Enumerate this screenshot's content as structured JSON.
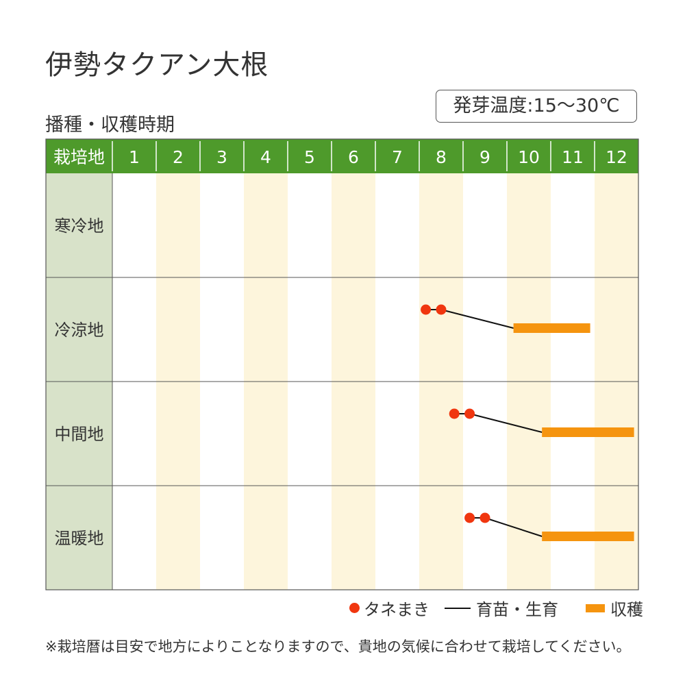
{
  "title": "伊勢タクアン大根",
  "subtitle": "播種・収穫時期",
  "temperature": "発芽温度:15～30℃",
  "note": "※栽培暦は目安で地方によりことなりますので、貴地の気候に合わせて栽培してください。",
  "legend": {
    "sowing": "タネまき",
    "growing": "育苗・生育",
    "harvest": "収穫"
  },
  "colors": {
    "header_green": "#4e9a2b",
    "region_bg": "#d8e2c9",
    "stripe": "#fdf5dc",
    "sowing": "#f0360f",
    "harvest": "#f5940f",
    "grid": "#555555"
  },
  "chart_data": {
    "type": "table",
    "header_label": "栽培地",
    "months": [
      "1",
      "2",
      "3",
      "4",
      "5",
      "6",
      "7",
      "8",
      "9",
      "10",
      "11",
      "12"
    ],
    "rows": [
      {
        "region": "寒冷地",
        "sowing": [],
        "growing": [],
        "harvest": []
      },
      {
        "region": "冷涼地",
        "sowing": [
          8.15,
          8.5
        ],
        "growing": [
          8.5,
          10.15
        ],
        "harvest": [
          10.15,
          11.9
        ]
      },
      {
        "region": "中間地",
        "sowing": [
          8.8,
          9.15
        ],
        "growing": [
          9.15,
          10.8
        ],
        "harvest": [
          10.8,
          12.9
        ]
      },
      {
        "region": "温暖地",
        "sowing": [
          9.15,
          9.5
        ],
        "growing": [
          9.5,
          10.8
        ],
        "harvest": [
          10.8,
          12.9
        ]
      }
    ]
  }
}
